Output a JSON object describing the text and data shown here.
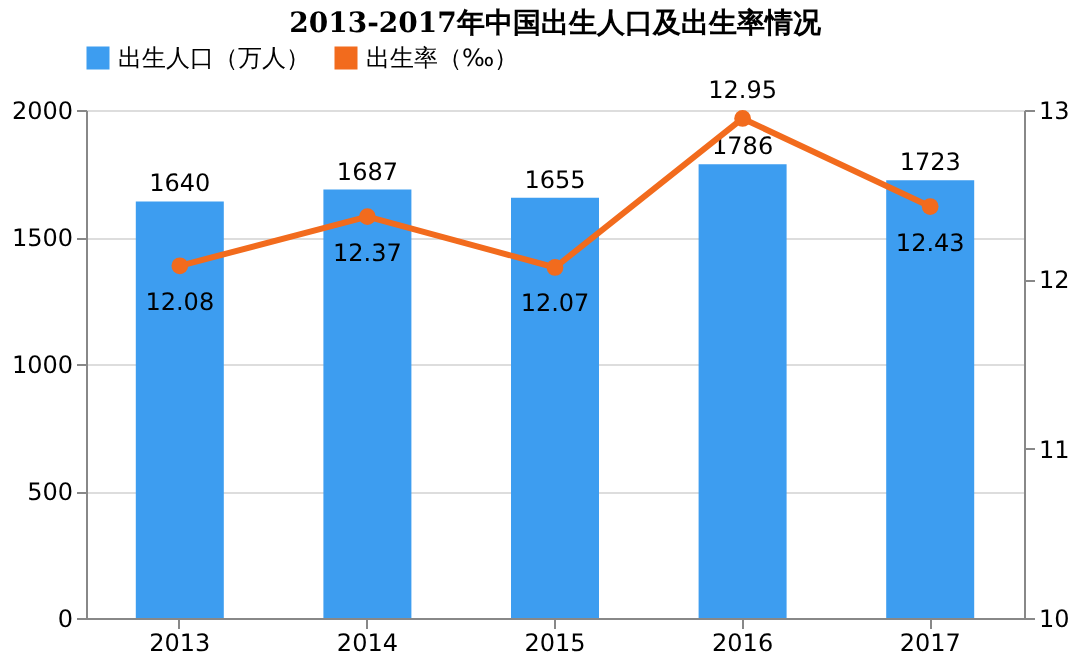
{
  "chart_data": {
    "type": "bar",
    "title": "2013-2017年中国出生人口及出生率情况",
    "categories": [
      "2013",
      "2014",
      "2015",
      "2016",
      "2017"
    ],
    "series": [
      {
        "name": "出生人口（万人）",
        "color": "#3d9df0",
        "values": [
          1640,
          1687,
          1655,
          1786,
          1723
        ]
      },
      {
        "name": "出生率（‰）",
        "type": "line",
        "axis": "y2",
        "color": "#f26b1d",
        "values": [
          12.08,
          12.37,
          12.07,
          12.95,
          12.43
        ]
      }
    ],
    "ylim": [
      0,
      2000
    ],
    "yticks": [
      0,
      500,
      1000,
      1500,
      2000
    ],
    "y2lim": [
      10,
      13
    ],
    "y2ticks": [
      10,
      11,
      12,
      13
    ],
    "data_labels": true,
    "grid": "y",
    "legend": "top",
    "marker": "circle",
    "line_style": "solid"
  }
}
